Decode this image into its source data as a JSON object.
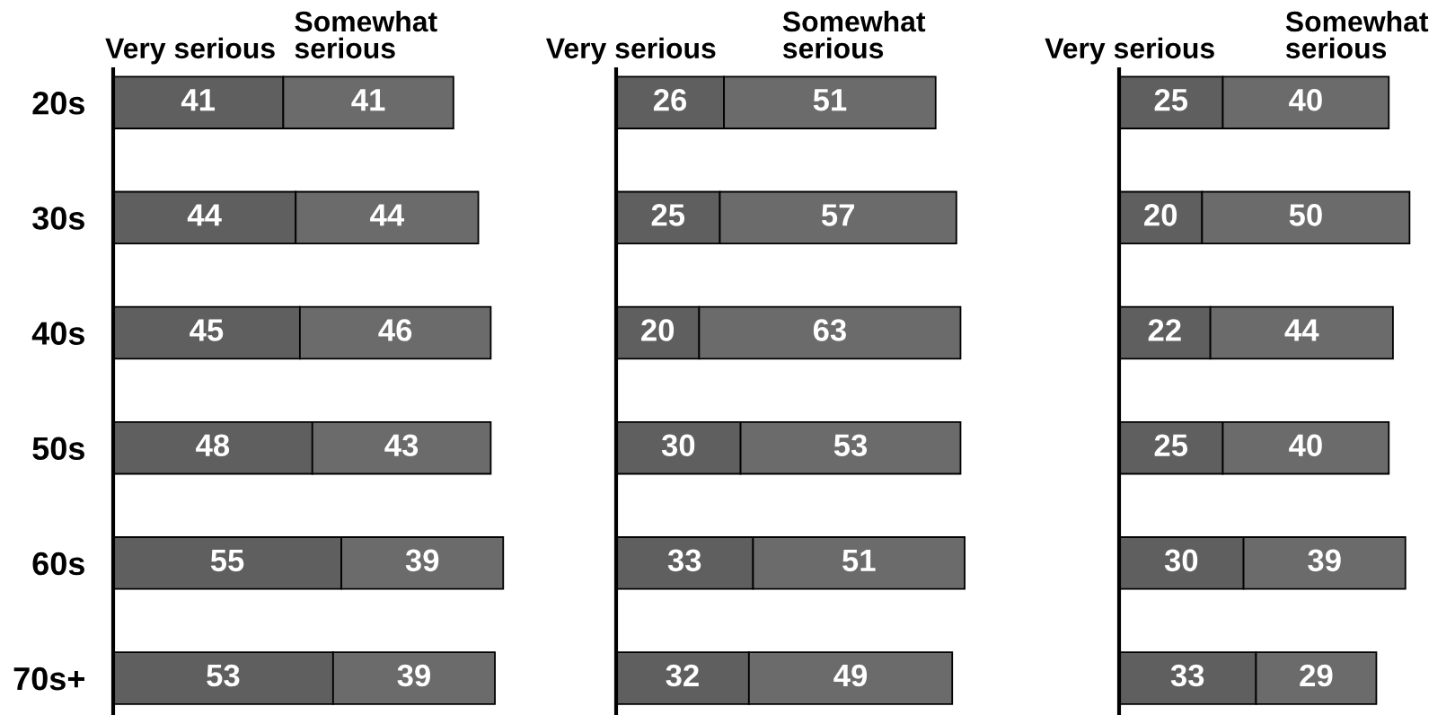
{
  "chart_data": [
    {
      "type": "bar",
      "orientation": "horizontal",
      "stacked": true,
      "categories": [
        "20s",
        "30s",
        "40s",
        "50s",
        "60s",
        "70s+"
      ],
      "series": [
        {
          "name": "Very serious",
          "color": "#5f5f5f",
          "values": [
            41,
            44,
            45,
            48,
            55,
            53
          ]
        },
        {
          "name": "Somewhat serious",
          "color": "#6b6b6b",
          "values": [
            41,
            44,
            46,
            43,
            39,
            39
          ]
        }
      ],
      "data_labels": true,
      "tick_labels": "y"
    },
    {
      "type": "bar",
      "orientation": "horizontal",
      "stacked": true,
      "categories": [
        null,
        null,
        null,
        null,
        null,
        null
      ],
      "series": [
        {
          "name": "Very serious",
          "color": "#5f5f5f",
          "values": [
            26,
            25,
            20,
            30,
            33,
            32
          ]
        },
        {
          "name": "Somewhat serious",
          "color": "#6b6b6b",
          "values": [
            51,
            57,
            63,
            53,
            51,
            49
          ]
        }
      ],
      "data_labels": true,
      "tick_labels": false
    },
    {
      "type": "bar",
      "orientation": "horizontal",
      "stacked": true,
      "categories": [
        null,
        null,
        null,
        null,
        null,
        null
      ],
      "series": [
        {
          "name": "Very serious",
          "color": "#5f5f5f",
          "values": [
            25,
            20,
            22,
            25,
            30,
            33
          ]
        },
        {
          "name": "Somewhat serious",
          "color": "#6b6b6b",
          "values": [
            40,
            50,
            44,
            40,
            39,
            29
          ]
        }
      ],
      "data_labels": true,
      "tick_labels": false
    }
  ]
}
